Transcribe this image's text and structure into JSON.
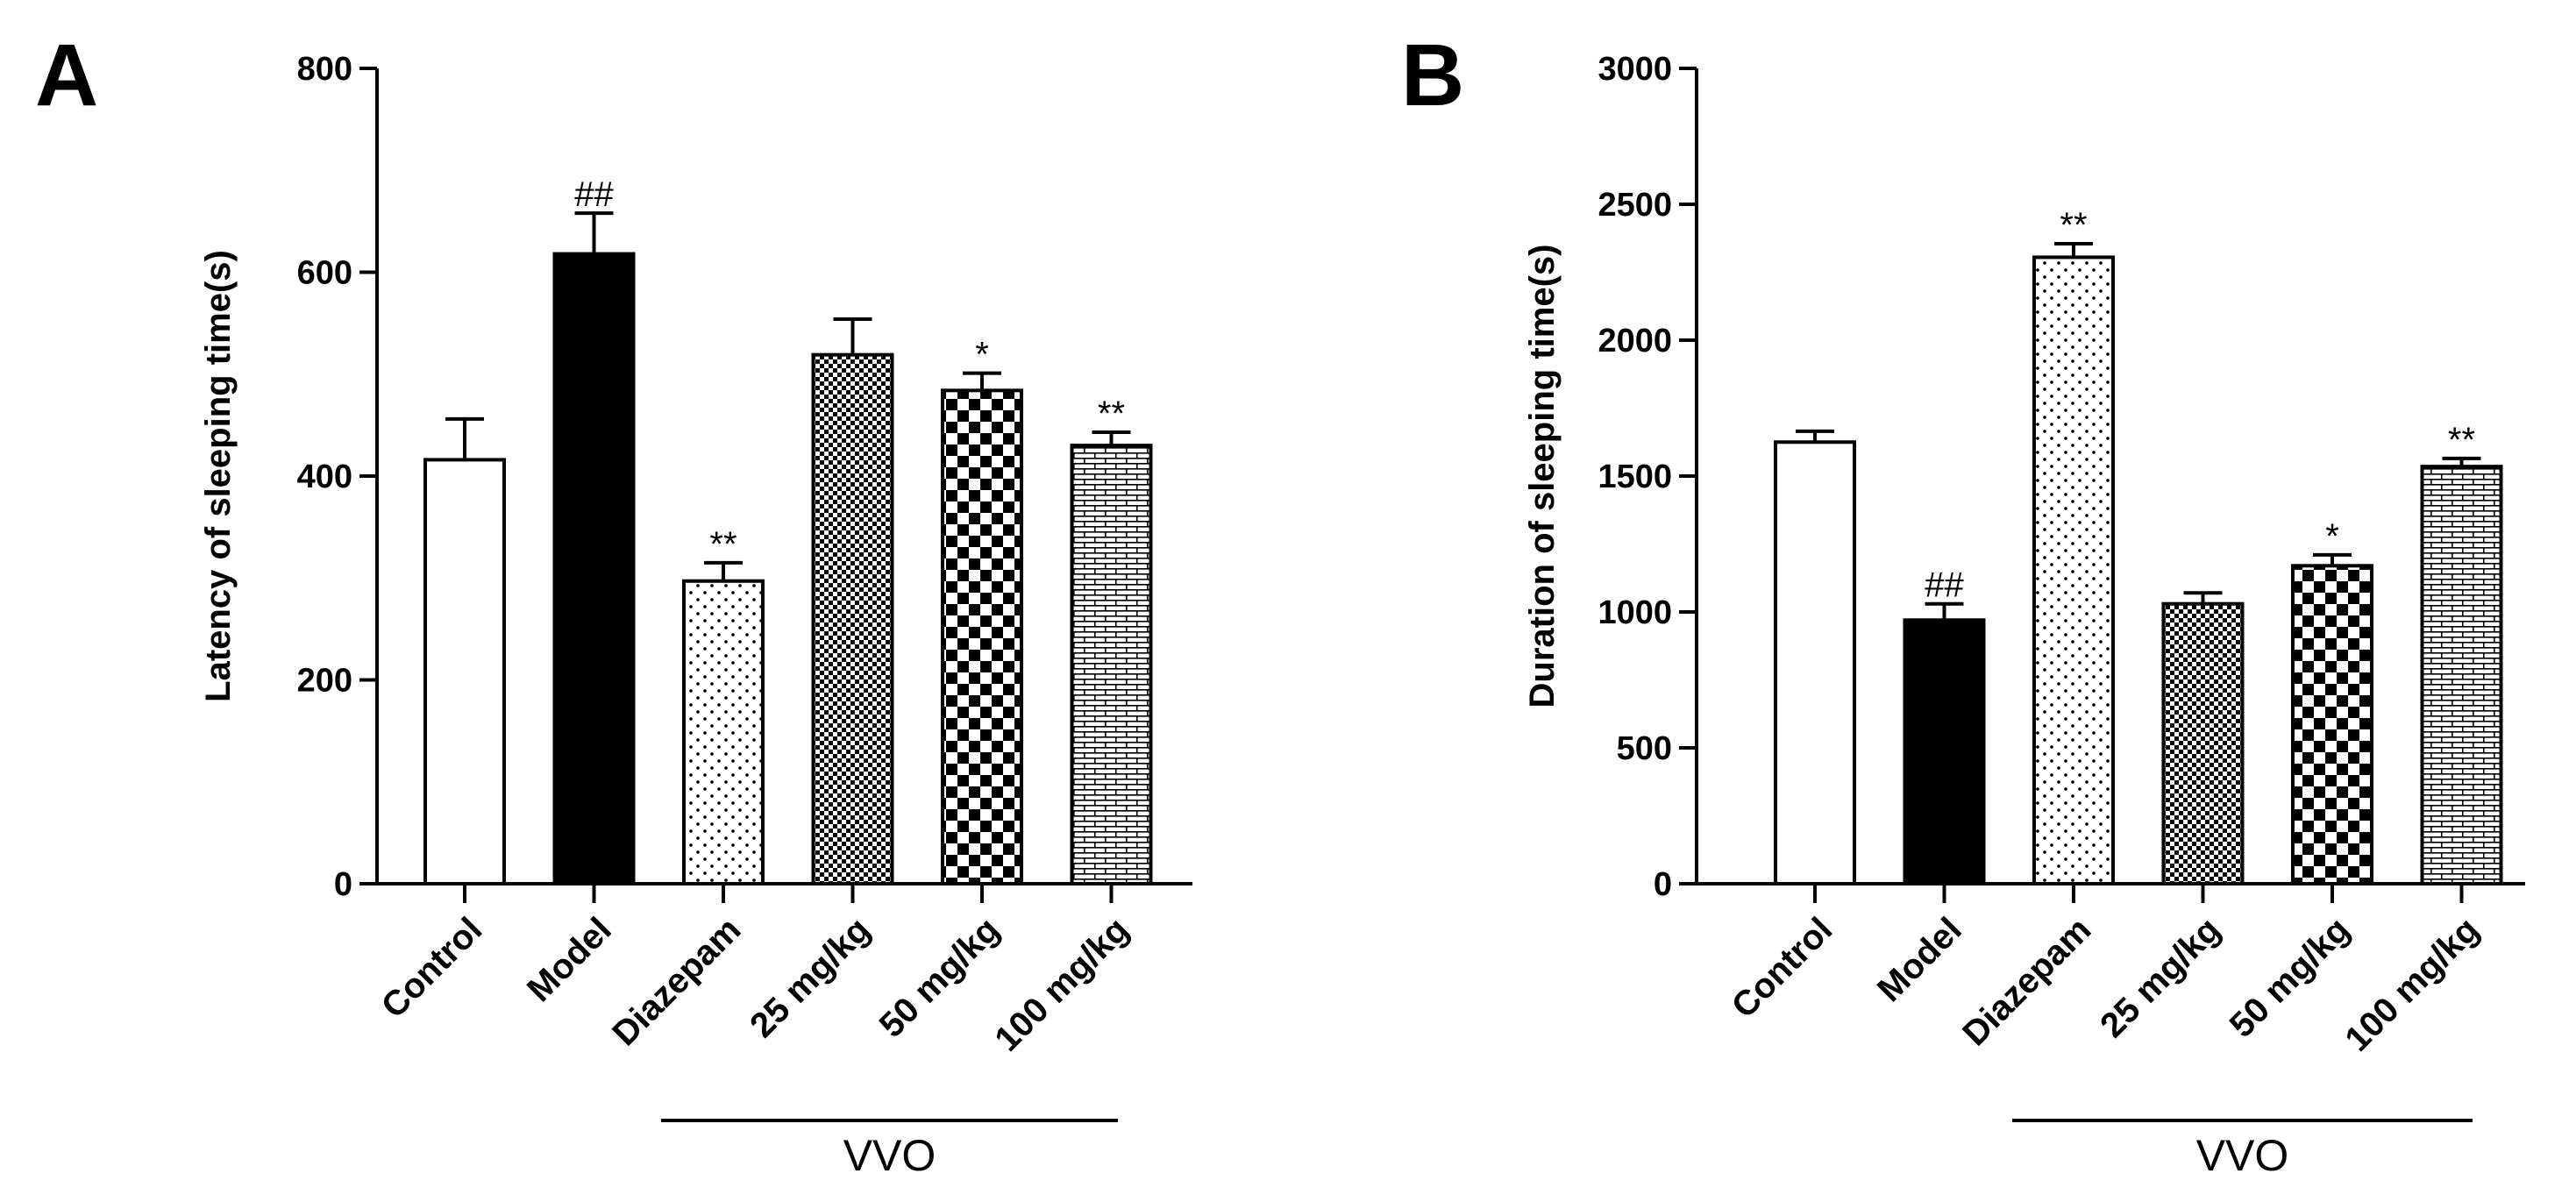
{
  "chart_data": [
    {
      "panel": "A",
      "type": "bar",
      "ylabel": "Latency of sleeping time(s)",
      "ylim": [
        0,
        800
      ],
      "yticks": [
        0,
        200,
        400,
        600,
        800
      ],
      "categories": [
        "Control",
        "Model",
        "Diazepam",
        "25 mg/kg",
        "50 mg/kg",
        "100 mg/kg"
      ],
      "values": [
        416,
        618,
        297,
        519,
        484,
        430
      ],
      "errors": [
        40,
        40,
        18,
        35,
        17,
        13
      ],
      "significance": [
        "",
        "##",
        "**",
        "",
        "*",
        "**"
      ],
      "fills": [
        "white",
        "black",
        "dots",
        "fine-checker",
        "coarse-checker",
        "brick"
      ],
      "group_label": "VVO",
      "group_span": [
        "Diazepam",
        "100 mg/kg"
      ]
    },
    {
      "panel": "B",
      "type": "bar",
      "ylabel": "Duration of sleeping time(s)",
      "ylim": [
        0,
        3000
      ],
      "yticks": [
        0,
        500,
        1000,
        1500,
        2000,
        2500,
        3000
      ],
      "categories": [
        "Control",
        "Model",
        "Diazepam",
        "25 mg/kg",
        "50 mg/kg",
        "100 mg/kg"
      ],
      "values": [
        1625,
        970,
        2305,
        1030,
        1170,
        1535
      ],
      "errors": [
        40,
        60,
        50,
        40,
        40,
        30
      ],
      "significance": [
        "",
        "##",
        "**",
        "",
        "*",
        "**"
      ],
      "fills": [
        "white",
        "black",
        "dots",
        "fine-checker",
        "coarse-checker",
        "brick"
      ],
      "group_label": "VVO",
      "group_span": [
        "Diazepam",
        "100 mg/kg"
      ]
    }
  ]
}
